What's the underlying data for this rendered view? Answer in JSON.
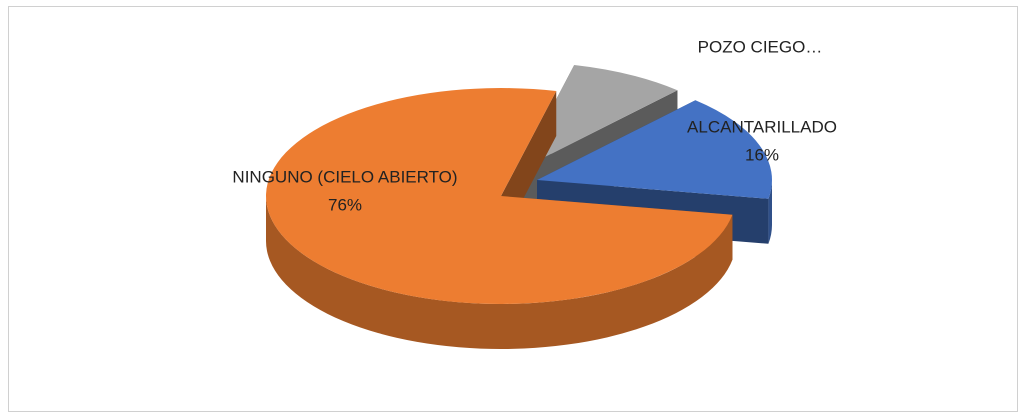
{
  "chart_data": {
    "type": "pie3d",
    "categories": [
      "ALCANTARILLADO",
      "NINGUNO (CIELO ABIERTO)",
      "POZO CIEGO…"
    ],
    "values": [
      16,
      76,
      8
    ],
    "value_labels": [
      "16%",
      "76%",
      null
    ],
    "colors": [
      "#4472c4",
      "#ed7d31",
      "#a5a5a5"
    ]
  }
}
